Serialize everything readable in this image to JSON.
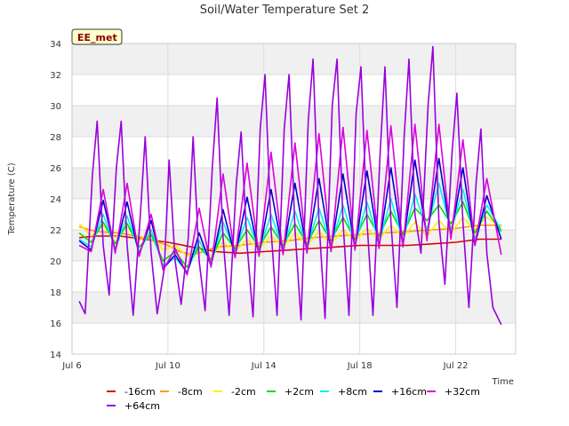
{
  "chart_data": {
    "type": "line",
    "title": "Soil/Water Temperature Set 2",
    "xlabel": "Time",
    "ylabel": "Temperature (C)",
    "station_tag": "EE_met",
    "ylim": [
      14,
      34
    ],
    "yticks": [
      14,
      16,
      18,
      20,
      22,
      24,
      26,
      28,
      30,
      32,
      34
    ],
    "xlim_days": [
      6,
      24.5
    ],
    "xticks": [
      {
        "day": 6,
        "label": "Jul 6"
      },
      {
        "day": 10,
        "label": "Jul 10"
      },
      {
        "day": 14,
        "label": "Jul 14"
      },
      {
        "day": 18,
        "label": "Jul 18"
      },
      {
        "day": 22,
        "label": "Jul 22"
      }
    ],
    "grid": true,
    "legend_position": "bottom",
    "series": [
      {
        "name": "-16cm",
        "color": "#dd0000",
        "x": [
          6.3,
          7,
          8,
          9,
          10,
          11,
          12,
          13,
          14,
          15,
          16,
          17,
          18,
          19,
          20,
          21,
          22,
          23,
          23.9
        ],
        "y": [
          21.5,
          21.6,
          21.6,
          21.4,
          21.2,
          20.9,
          20.6,
          20.5,
          20.6,
          20.7,
          20.8,
          20.9,
          21.0,
          21.0,
          21.0,
          21.1,
          21.2,
          21.4,
          21.4
        ]
      },
      {
        "name": "-8cm",
        "color": "#ff9900",
        "x": [
          6.3,
          7,
          8,
          9,
          10,
          10.5,
          11,
          11.5,
          12,
          13,
          14,
          15,
          16,
          17,
          18,
          19,
          20,
          21,
          22,
          23,
          23.9
        ],
        "y": [
          22.2,
          21.9,
          21.8,
          21.5,
          21.0,
          20.6,
          20.4,
          20.6,
          20.9,
          21.0,
          21.2,
          21.3,
          21.5,
          21.6,
          21.7,
          21.8,
          21.9,
          22.0,
          22.1,
          22.3,
          22.3
        ]
      },
      {
        "name": "-2cm",
        "color": "#ffee00",
        "x": [
          6.3,
          6.8,
          7.3,
          7.8,
          8.3,
          8.8,
          9.3,
          9.8,
          10.3,
          10.8,
          11.3,
          11.8,
          12.3,
          12.8,
          13.3,
          13.8,
          14.3,
          14.8,
          15.3,
          15.8,
          16.3,
          16.8,
          17.3,
          17.8,
          18.3,
          18.8,
          19.3,
          19.8,
          20.3,
          20.8,
          21.3,
          21.8,
          22.3,
          22.8,
          23.3,
          23.9
        ],
        "y": [
          22.4,
          21.6,
          22.3,
          21.5,
          22.2,
          21.3,
          21.9,
          20.7,
          21.0,
          20.3,
          20.8,
          20.3,
          21.2,
          20.6,
          21.4,
          20.8,
          21.6,
          20.9,
          21.8,
          21.0,
          21.9,
          21.1,
          22.0,
          21.3,
          22.1,
          21.4,
          22.3,
          21.5,
          22.5,
          21.6,
          22.6,
          21.8,
          22.8,
          22.0,
          22.8,
          22.2
        ]
      },
      {
        "name": "+2cm",
        "color": "#00dd00",
        "x": [
          6.3,
          6.8,
          7.3,
          7.8,
          8.3,
          8.8,
          9.3,
          9.8,
          10.3,
          10.8,
          11.3,
          11.8,
          12.3,
          12.8,
          13.3,
          13.8,
          14.3,
          14.8,
          15.3,
          15.8,
          16.3,
          16.8,
          17.3,
          17.8,
          18.3,
          18.8,
          19.3,
          19.8,
          20.3,
          20.8,
          21.3,
          21.8,
          22.3,
          22.8,
          23.3,
          23.9
        ],
        "y": [
          21.8,
          21.2,
          22.5,
          21.1,
          22.4,
          20.9,
          21.7,
          20.0,
          20.6,
          19.6,
          20.9,
          20.1,
          21.8,
          20.8,
          22.0,
          20.9,
          22.2,
          21.0,
          22.4,
          21.1,
          22.6,
          21.3,
          22.8,
          21.4,
          23.0,
          21.6,
          23.2,
          21.7,
          23.4,
          22.6,
          23.6,
          22.4,
          23.8,
          21.8,
          23.2,
          21.9
        ]
      },
      {
        "name": "+8cm",
        "color": "#00eeee",
        "x": [
          6.3,
          6.8,
          7.3,
          7.8,
          8.3,
          8.8,
          9.3,
          9.8,
          10.3,
          10.8,
          11.3,
          11.8,
          12.3,
          12.8,
          13.3,
          13.8,
          14.3,
          14.8,
          15.3,
          15.8,
          16.3,
          16.8,
          17.3,
          17.8,
          18.3,
          18.8,
          19.3,
          19.8,
          20.3,
          20.8,
          21.3,
          21.8,
          22.3,
          22.8,
          23.3,
          23.9
        ],
        "y": [
          21.4,
          20.9,
          23.0,
          20.8,
          22.9,
          20.6,
          22.0,
          19.7,
          20.2,
          19.3,
          21.3,
          19.9,
          22.5,
          20.6,
          22.8,
          20.7,
          23.0,
          20.8,
          23.2,
          20.9,
          23.4,
          21.0,
          23.6,
          21.1,
          23.8,
          21.2,
          24.0,
          21.3,
          24.3,
          22.0,
          25.0,
          22.0,
          24.6,
          21.4,
          23.6,
          22.0
        ]
      },
      {
        "name": "+16cm",
        "color": "#0000cc",
        "x": [
          6.3,
          6.8,
          7.3,
          7.8,
          8.3,
          8.8,
          9.3,
          9.8,
          10.3,
          10.8,
          11.3,
          11.8,
          12.3,
          12.8,
          13.3,
          13.8,
          14.3,
          14.8,
          15.3,
          15.8,
          16.3,
          16.8,
          17.3,
          17.8,
          18.3,
          18.8,
          19.3,
          19.8,
          20.3,
          20.8,
          21.3,
          21.8,
          22.3,
          22.8,
          23.3,
          23.9
        ],
        "y": [
          21.3,
          20.7,
          23.9,
          20.6,
          23.8,
          20.4,
          22.6,
          19.5,
          20.4,
          19.2,
          21.8,
          19.7,
          23.3,
          20.3,
          24.1,
          20.4,
          24.6,
          20.5,
          25.0,
          20.6,
          25.3,
          20.7,
          25.6,
          20.8,
          25.8,
          20.9,
          26.0,
          21.0,
          26.5,
          21.5,
          26.6,
          21.6,
          26.0,
          21.0,
          24.2,
          21.4
        ]
      },
      {
        "name": "+32cm",
        "color": "#dd00dd",
        "x": [
          6.3,
          6.8,
          7.3,
          7.8,
          8.3,
          8.8,
          9.3,
          9.8,
          10.3,
          10.8,
          11.3,
          11.8,
          12.3,
          12.8,
          13.3,
          13.8,
          14.3,
          14.8,
          15.3,
          15.8,
          16.3,
          16.8,
          17.3,
          17.8,
          18.3,
          18.8,
          19.3,
          19.8,
          20.3,
          20.8,
          21.3,
          21.8,
          22.3,
          22.8,
          23.3,
          23.9
        ],
        "y": [
          21.0,
          20.6,
          24.6,
          20.5,
          25.0,
          20.3,
          23.0,
          19.4,
          20.8,
          19.1,
          23.4,
          19.6,
          25.6,
          20.2,
          26.3,
          20.3,
          27.0,
          20.4,
          27.6,
          20.5,
          28.2,
          20.6,
          28.6,
          20.7,
          28.4,
          20.8,
          28.7,
          20.9,
          28.8,
          21.3,
          28.8,
          21.4,
          27.8,
          21.0,
          25.3,
          20.4
        ]
      },
      {
        "name": "+64cm",
        "color": "#9900dd",
        "x": [
          6.3,
          6.55,
          6.85,
          7.05,
          7.3,
          7.55,
          7.85,
          8.05,
          8.3,
          8.55,
          8.85,
          9.05,
          9.3,
          9.55,
          9.85,
          10.05,
          10.3,
          10.55,
          10.85,
          11.05,
          11.3,
          11.55,
          11.85,
          12.05,
          12.3,
          12.55,
          12.85,
          13.05,
          13.3,
          13.55,
          13.85,
          14.05,
          14.3,
          14.55,
          14.85,
          15.05,
          15.3,
          15.55,
          15.85,
          16.05,
          16.3,
          16.55,
          16.85,
          17.05,
          17.3,
          17.55,
          17.85,
          18.05,
          18.3,
          18.55,
          18.85,
          19.05,
          19.3,
          19.55,
          19.85,
          20.05,
          20.3,
          20.55,
          20.85,
          21.05,
          21.3,
          21.55,
          21.85,
          22.05,
          22.3,
          22.55,
          22.85,
          23.05,
          23.3,
          23.55,
          23.9
        ],
        "y": [
          17.4,
          16.6,
          25.5,
          29.0,
          21.0,
          17.8,
          26.0,
          29.0,
          21.0,
          16.5,
          23.0,
          28.0,
          20.5,
          16.6,
          19.5,
          26.5,
          20.0,
          17.2,
          21.5,
          28.0,
          20.0,
          16.8,
          26.0,
          30.5,
          21.5,
          16.5,
          25.0,
          28.3,
          21.0,
          16.4,
          28.5,
          32.0,
          22.0,
          16.5,
          28.5,
          32.0,
          22.0,
          16.2,
          29.0,
          33.0,
          22.5,
          16.3,
          30.0,
          33.0,
          22.5,
          16.5,
          29.5,
          32.5,
          22.5,
          16.5,
          27.0,
          32.5,
          22.5,
          17.0,
          28.0,
          33.0,
          23.0,
          20.5,
          30.0,
          33.8,
          22.5,
          18.5,
          27.0,
          30.8,
          22.5,
          17.0,
          25.0,
          28.5,
          20.5,
          17.0,
          15.9
        ]
      }
    ]
  }
}
